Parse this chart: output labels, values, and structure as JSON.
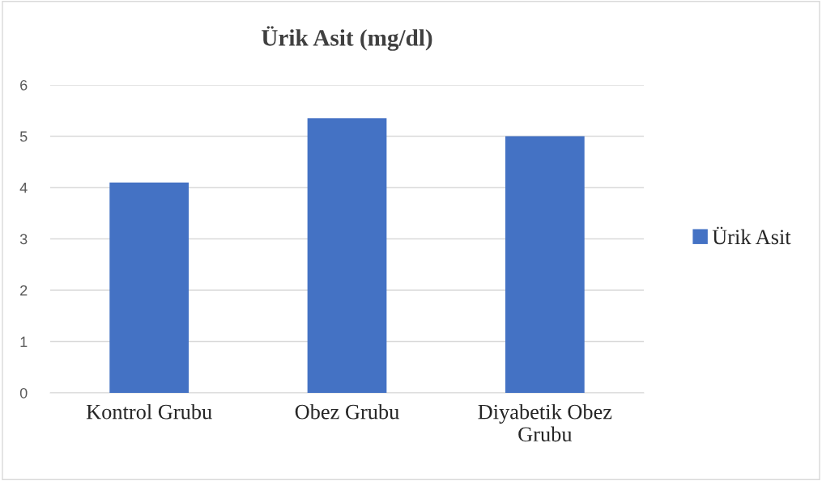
{
  "chart_data": {
    "type": "bar",
    "title": "Ürik Asit (mg/dl)",
    "categories": [
      "Kontrol Grubu",
      "Obez Grubu",
      "Diyabetik Obez Grubu"
    ],
    "series": [
      {
        "name": "Ürik Asit",
        "color": "#4472c4",
        "values": [
          4.1,
          5.35,
          5.0
        ]
      }
    ],
    "ylim": [
      0,
      6
    ],
    "yticks": [
      0,
      1,
      2,
      3,
      4,
      5,
      6
    ],
    "grid": "y",
    "legend": "right"
  }
}
